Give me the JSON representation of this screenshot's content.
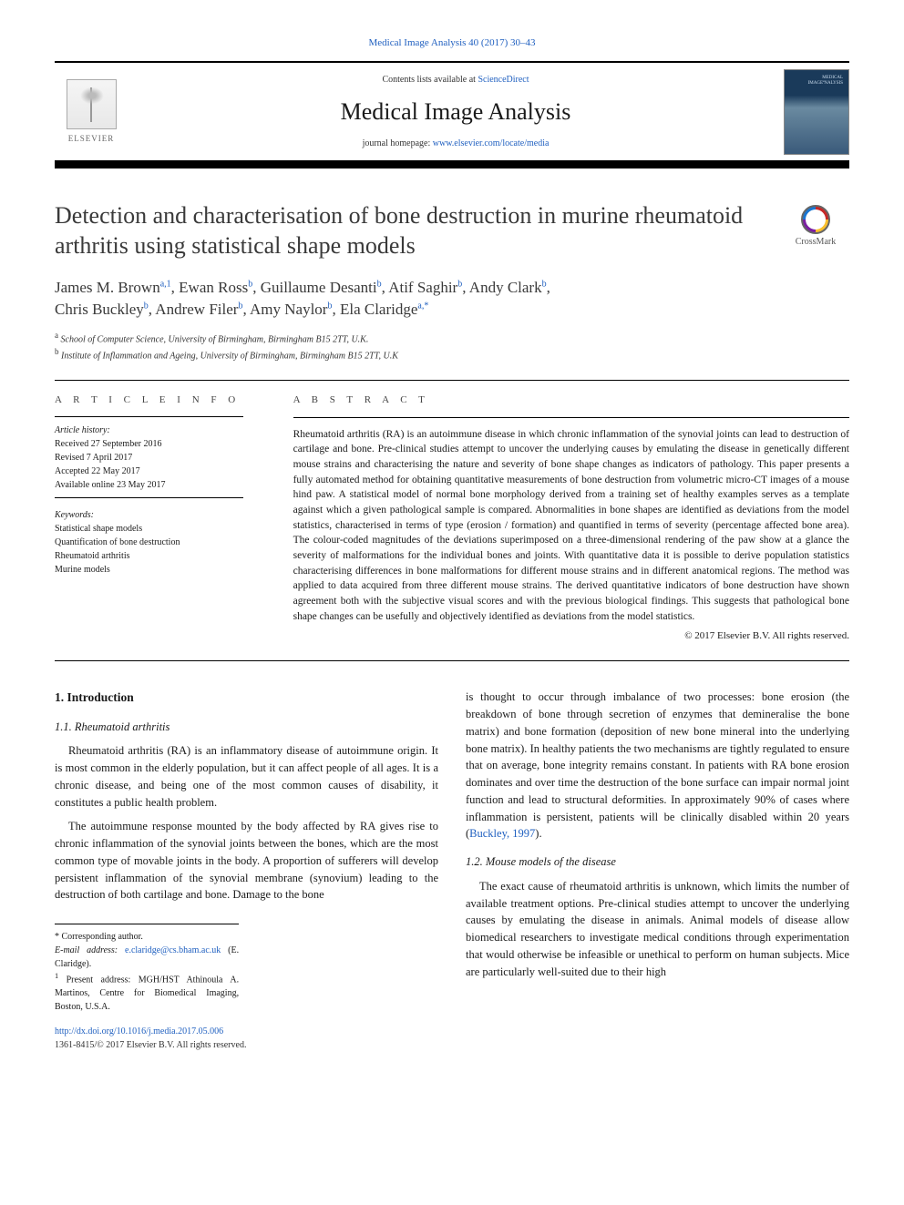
{
  "journal": {
    "topLink": "Medical Image Analysis 40 (2017) 30–43",
    "contentsPrefix": "Contents lists available at ",
    "contentsLink": "ScienceDirect",
    "name": "Medical Image Analysis",
    "homepagePrefix": "journal homepage: ",
    "homepageUrl": "www.elsevier.com/locate/media",
    "publisherLabel": "ELSEVIER"
  },
  "article": {
    "title": "Detection and characterisation of bone destruction in murine rheumatoid arthritis using statistical shape models",
    "crossmarkLabel": "CrossMark"
  },
  "authors": {
    "line1_html": "James M. Brown<sup>a,1</sup>, Ewan Ross<sup>b</sup>, Guillaume Desanti<sup>b</sup>, Atif Saghir<sup>b</sup>, Andy Clark<sup>b</sup>,",
    "line2_html": "Chris Buckley<sup>b</sup>, Andrew Filer<sup>b</sup>, Amy Naylor<sup>b</sup>, Ela Claridge<sup>a,*</sup>"
  },
  "affiliations": {
    "a": "School of Computer Science, University of Birmingham, Birmingham B15 2TT, U.K.",
    "b": "Institute of Inflammation and Ageing, University of Birmingham, Birmingham B15 2TT, U.K"
  },
  "metaHeads": {
    "info": "a r t i c l e   i n f o",
    "abstract": "a b s t r a c t"
  },
  "history": {
    "label": "Article history:",
    "received": "Received 27 September 2016",
    "revised": "Revised 7 April 2017",
    "accepted": "Accepted 22 May 2017",
    "online": "Available online 23 May 2017"
  },
  "keywords": {
    "label": "Keywords:",
    "items": [
      "Statistical shape models",
      "Quantification of bone destruction",
      "Rheumatoid arthritis",
      "Murine models"
    ]
  },
  "abstract": {
    "text": "Rheumatoid arthritis (RA) is an autoimmune disease in which chronic inflammation of the synovial joints can lead to destruction of cartilage and bone. Pre-clinical studies attempt to uncover the underlying causes by emulating the disease in genetically different mouse strains and characterising the nature and severity of bone shape changes as indicators of pathology. This paper presents a fully automated method for obtaining quantitative measurements of bone destruction from volumetric micro-CT images of a mouse hind paw. A statistical model of normal bone morphology derived from a training set of healthy examples serves as a template against which a given pathological sample is compared. Abnormalities in bone shapes are identified as deviations from the model statistics, characterised in terms of type (erosion / formation) and quantified in terms of severity (percentage affected bone area). The colour-coded magnitudes of the deviations superimposed on a three-dimensional rendering of the paw show at a glance the severity of malformations for the individual bones and joints. With quantitative data it is possible to derive population statistics characterising differences in bone malformations for different mouse strains and in different anatomical regions. The method was applied to data acquired from three different mouse strains. The derived quantitative indicators of bone destruction have shown agreement both with the subjective visual scores and with the previous biological findings. This suggests that pathological bone shape changes can be usefully and objectively identified as deviations from the model statistics.",
    "copyright": "© 2017 Elsevier B.V. All rights reserved."
  },
  "sections": {
    "s1": "1. Introduction",
    "s1_1": "1.1. Rheumatoid arthritis",
    "s1_2": "1.2. Mouse models of the disease",
    "p1": "Rheumatoid arthritis (RA) is an inflammatory disease of autoimmune origin. It is most common in the elderly population, but it can affect people of all ages. It is a chronic disease, and being one of the most common causes of disability, it constitutes a public health problem.",
    "p2": "The autoimmune response mounted by the body affected by RA gives rise to chronic inflammation of the synovial joints between the bones, which are the most common type of movable joints in the body. A proportion of sufferers will develop persistent inflammation of the synovial membrane (synovium) leading to the destruction of both cartilage and bone. Damage to the bone",
    "p3a": "is thought to occur through imbalance of two processes: bone erosion (the breakdown of bone through secretion of enzymes that demineralise the bone matrix) and bone formation (deposition of new bone mineral into the underlying bone matrix). In healthy patients the two mechanisms are tightly regulated to ensure that on average, bone integrity remains constant. In patients with RA bone erosion dominates and over time the destruction of the bone surface can impair normal joint function and lead to structural deformities. In approximately 90% of cases where inflammation is persistent, patients will be clinically disabled within 20 years (",
    "p3_ref": "Buckley, 1997",
    "p3b": ").",
    "p4": "The exact cause of rheumatoid arthritis is unknown, which limits the number of available treatment options. Pre-clinical studies attempt to uncover the underlying causes by emulating the disease in animals. Animal models of disease allow biomedical researchers to investigate medical conditions through experimentation that would otherwise be infeasible or unethical to perform on human subjects. Mice are particularly well-suited due to their high"
  },
  "footnotes": {
    "corr": "* Corresponding author.",
    "emailLabel": "E-mail address: ",
    "email": "e.claridge@cs.bham.ac.uk",
    "emailSuffix": " (E. Claridge).",
    "present": "Present address: MGH/HST Athinoula A. Martinos, Centre for Biomedical Imaging, Boston, U.S.A.",
    "presentSup": "1"
  },
  "doi": {
    "url": "http://dx.doi.org/10.1016/j.media.2017.05.006",
    "issn": "1361-8415/© 2017 Elsevier B.V. All rights reserved."
  },
  "colors": {
    "link": "#2060c0",
    "text": "#1a1a1a",
    "heading": "#3a3a3a"
  }
}
